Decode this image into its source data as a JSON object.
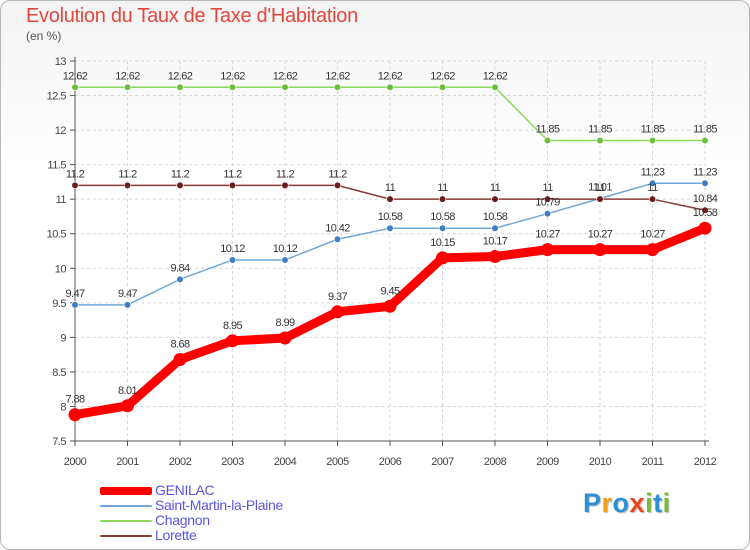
{
  "chart_data": {
    "type": "line",
    "title": "Evolution du Taux de Taxe d'Habitation",
    "subtitle": "(en %)",
    "xlabel": "",
    "ylabel": "",
    "x": [
      "2000",
      "2001",
      "2002",
      "2003",
      "2004",
      "2005",
      "2006",
      "2007",
      "2008",
      "2009",
      "2010",
      "2011",
      "2012"
    ],
    "ylim": [
      7.5,
      13
    ],
    "yticks": [
      "7.5",
      "8",
      "8.5",
      "9",
      "9.5",
      "10",
      "10.5",
      "11",
      "11.5",
      "12",
      "12.5",
      "13"
    ],
    "grid": true,
    "series": [
      {
        "name": "GENILAC",
        "color": "#ff0000",
        "values": [
          7.88,
          8.01,
          8.68,
          8.95,
          8.99,
          9.37,
          9.45,
          10.15,
          10.17,
          10.27,
          10.27,
          10.27,
          10.58
        ],
        "labels": [
          "7.88",
          "8.01",
          "8.68",
          "8.95",
          "8.99",
          "9.37",
          "9.45",
          "10.15",
          "10.17",
          "10.27",
          "10.27",
          "10.27",
          "10.58"
        ]
      },
      {
        "name": "Saint-Martin-la-Plaine",
        "color": "#6fa8d8",
        "marker_color": "#3d7fc2",
        "values": [
          9.47,
          9.47,
          9.84,
          10.12,
          10.12,
          10.42,
          10.58,
          10.58,
          10.58,
          10.79,
          11.01,
          11.23,
          11.23
        ],
        "labels": [
          "9.47",
          "9.47",
          "9.84",
          "10.12",
          "10.12",
          "10.42",
          "10.58",
          "10.58",
          "10.58",
          "10.79",
          "11.01",
          "11.23",
          "11.23"
        ]
      },
      {
        "name": "Chagnon",
        "color": "#8cd85a",
        "marker_color": "#6cbf3c",
        "values": [
          12.62,
          12.62,
          12.62,
          12.62,
          12.62,
          12.62,
          12.62,
          12.62,
          12.62,
          11.85,
          11.85,
          11.85,
          11.85
        ],
        "labels": [
          "12.62",
          "12.62",
          "12.62",
          "12.62",
          "12.62",
          "12.62",
          "12.62",
          "12.62",
          "12.62",
          "11.85",
          "11.85",
          "11.85",
          "11.85"
        ]
      },
      {
        "name": "Lorette",
        "color": "#8a3a3a",
        "marker_color": "#6b1e1e",
        "values": [
          11.2,
          11.2,
          11.2,
          11.2,
          11.2,
          11.2,
          11,
          11,
          11,
          11,
          11,
          11,
          10.84
        ],
        "labels": [
          "11.2",
          "11.2",
          "11.2",
          "11.2",
          "11.2",
          "11.2",
          "11",
          "11",
          "11",
          "11",
          "11",
          "11",
          "10.84"
        ]
      }
    ]
  },
  "legend": {
    "items": [
      {
        "label": "GENILAC",
        "color": "#ff0000",
        "label_color": "#5a55e0"
      },
      {
        "label": "Saint-Martin-la-Plaine",
        "color": "#6fa8d8",
        "label_color": "#5a55e0"
      },
      {
        "label": "Chagnon",
        "color": "#8cd85a",
        "label_color": "#5a55e0"
      },
      {
        "label": "Lorette",
        "color": "#8a3a3a",
        "label_color": "#5a55e0"
      }
    ]
  },
  "logo": {
    "text": "Proxiti",
    "letters": [
      "P",
      "r",
      "o",
      "x",
      "i",
      "t",
      "i"
    ],
    "colors": [
      "#2f8fd6",
      "#f2a01e",
      "#2f8fd6",
      "#e8461f",
      "#75bb2c",
      "#2f8fd6",
      "#75bb2c"
    ]
  }
}
